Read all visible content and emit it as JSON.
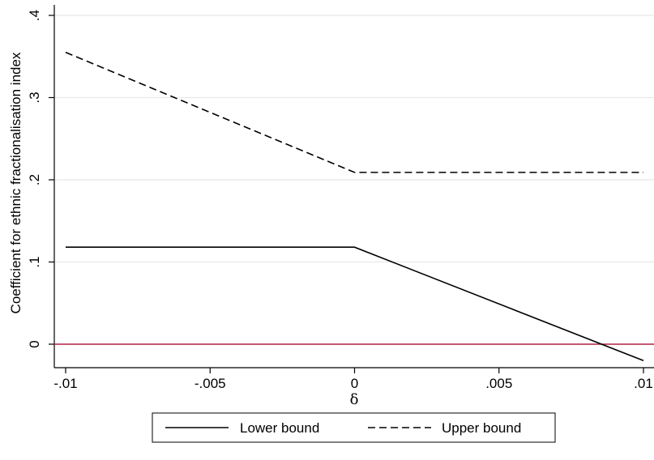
{
  "chart_data": {
    "type": "line",
    "xlabel": "δ",
    "ylabel": "Coefficient for ethnic fractionalisation index",
    "xlim": [
      -0.01,
      0.01
    ],
    "ylim": [
      -0.025,
      0.4
    ],
    "x_ticks": [
      {
        "value": -0.01,
        "label": "-.01"
      },
      {
        "value": -0.005,
        "label": "-.005"
      },
      {
        "value": 0,
        "label": "0"
      },
      {
        "value": 0.005,
        "label": ".005"
      },
      {
        "value": 0.01,
        "label": ".01"
      }
    ],
    "y_ticks": [
      {
        "value": 0,
        "label": "0"
      },
      {
        "value": 0.1,
        "label": ".1"
      },
      {
        "value": 0.2,
        "label": ".2"
      },
      {
        "value": 0.3,
        "label": ".3"
      },
      {
        "value": 0.4,
        "label": ".4"
      }
    ],
    "grid": true,
    "series": [
      {
        "name": "Lower bound",
        "style": "solid",
        "color": "#000000",
        "x": [
          -0.01,
          0,
          0.01
        ],
        "y": [
          0.118,
          0.118,
          -0.02
        ]
      },
      {
        "name": "Upper bound",
        "style": "dashed",
        "color": "#000000",
        "x": [
          -0.01,
          0,
          0.01
        ],
        "y": [
          0.355,
          0.209,
          0.209
        ]
      }
    ],
    "reference_line": {
      "y": 0,
      "color": "#b22245"
    },
    "legend": {
      "placement": "bottom"
    }
  }
}
